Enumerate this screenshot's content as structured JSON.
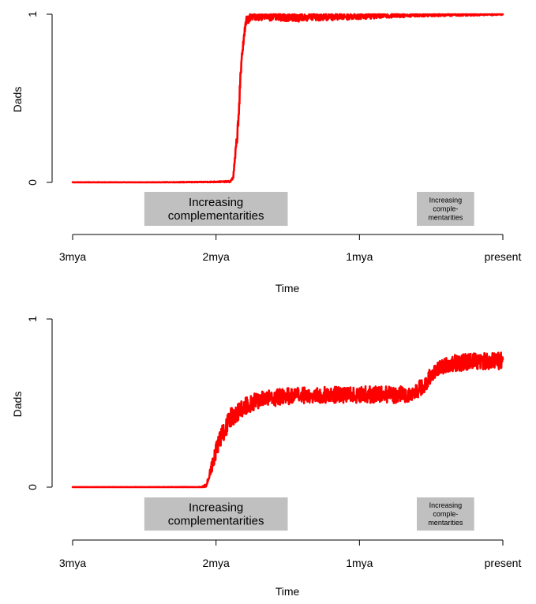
{
  "chart_data": [
    {
      "type": "line",
      "xlabel": "Time",
      "ylabel": "Dads",
      "ylim": [
        0,
        1
      ],
      "y_ticks": [
        "0",
        "1"
      ],
      "x_ticks": [
        "3mya",
        "2mya",
        "1mya",
        "present"
      ],
      "line_color": "#ff0000",
      "band_color": "#c0c0c0",
      "series": [
        {
          "values": [
            [
              0,
              0
            ],
            [
              0.5,
              0
            ],
            [
              0.9,
              0.002
            ],
            [
              1.1,
              0.005
            ],
            [
              1.12,
              0.03
            ],
            [
              1.15,
              0.3
            ],
            [
              1.17,
              0.6
            ],
            [
              1.19,
              0.85
            ],
            [
              1.21,
              0.96
            ],
            [
              1.25,
              0.99
            ],
            [
              1.6,
              0.985
            ],
            [
              2.0,
              0.99
            ],
            [
              2.4,
              0.995
            ],
            [
              3.0,
              1.0
            ]
          ]
        }
      ],
      "noise": [
        0.002,
        0.001,
        0.002,
        0.004,
        0.01,
        0.04,
        0.05,
        0.04,
        0.03,
        0.025,
        0.03,
        0.02,
        0.01,
        0.005
      ],
      "bands": [
        {
          "x0": 0.5,
          "x1": 1.5,
          "lines": [
            "Increasing",
            "complementarities"
          ],
          "size": "large"
        },
        {
          "x0": 2.4,
          "x1": 2.8,
          "lines": [
            "Increasing",
            "comple-",
            "mentarities"
          ],
          "size": "small"
        }
      ]
    },
    {
      "type": "line",
      "xlabel": "Time",
      "ylabel": "Dads",
      "ylim": [
        0,
        1
      ],
      "y_ticks": [
        "0",
        "1"
      ],
      "x_ticks": [
        "3mya",
        "2mya",
        "1mya",
        "present"
      ],
      "line_color": "#ff0000",
      "band_color": "#c0c0c0",
      "series": [
        {
          "values": [
            [
              0,
              0
            ],
            [
              0.5,
              0
            ],
            [
              0.9,
              0.0
            ],
            [
              0.93,
              0.01
            ],
            [
              0.95,
              0.06
            ],
            [
              1.0,
              0.22
            ],
            [
              1.05,
              0.33
            ],
            [
              1.1,
              0.41
            ],
            [
              1.2,
              0.48
            ],
            [
              1.3,
              0.52
            ],
            [
              1.5,
              0.54
            ],
            [
              1.8,
              0.55
            ],
            [
              2.1,
              0.55
            ],
            [
              2.35,
              0.55
            ],
            [
              2.45,
              0.6
            ],
            [
              2.5,
              0.67
            ],
            [
              2.6,
              0.73
            ],
            [
              2.8,
              0.75
            ],
            [
              3.0,
              0.75
            ]
          ]
        }
      ],
      "noise": [
        0.001,
        0.001,
        0.002,
        0.01,
        0.03,
        0.05,
        0.06,
        0.06,
        0.05,
        0.05,
        0.05,
        0.05,
        0.05,
        0.05,
        0.05,
        0.05,
        0.05,
        0.05,
        0.05
      ],
      "bands": [
        {
          "x0": 0.5,
          "x1": 1.5,
          "lines": [
            "Increasing",
            "complementarities"
          ],
          "size": "large"
        },
        {
          "x0": 2.4,
          "x1": 2.8,
          "lines": [
            "Increasing",
            "comple-",
            "mentarities"
          ],
          "size": "small"
        }
      ]
    }
  ]
}
